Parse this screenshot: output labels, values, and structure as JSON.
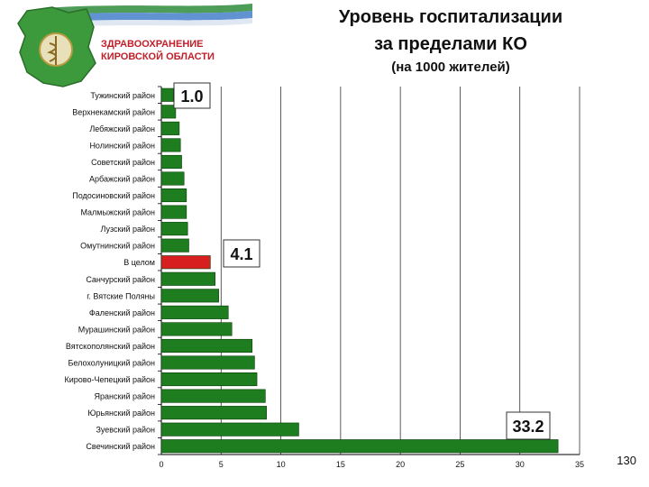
{
  "logo": {
    "line1": "ЗДРАВООХРАНЕНИЕ",
    "line2": "КИРОВСКОЙ ОБЛАСТИ",
    "colors": {
      "text": "#c0202a",
      "ribbon_green": "#2e8b3a",
      "ribbon_blue": "#3a78c8"
    }
  },
  "title_line1": "Уровень госпитализации",
  "title_line2": "за пределами КО",
  "subtitle": "(на 1000 жителей)",
  "page_number": "130",
  "chart_data": {
    "type": "bar",
    "orientation": "horizontal",
    "categories": [
      "Тужинский район",
      "Верхнекамский район",
      "Лебяжский район",
      "Нолинский район",
      "Советский район",
      "Арбажский район",
      "Подосиновский район",
      "Малмыжский район",
      "Лузский район",
      "Омутнинский район",
      "В целом",
      "Санчурский район",
      "г. Вятские Поляны",
      "Фаленский район",
      "Мурашинский район",
      "Вятскополянский район",
      "Белохолуницкий район",
      "Кирово-Чепецкий район",
      "Яранский район",
      "Юрьянский район",
      "Зуевский район",
      "Свечинский район"
    ],
    "values": [
      1.0,
      1.2,
      1.5,
      1.6,
      1.7,
      1.9,
      2.1,
      2.1,
      2.2,
      2.3,
      4.1,
      4.5,
      4.8,
      5.6,
      5.9,
      7.6,
      7.8,
      8.0,
      8.7,
      8.8,
      11.5,
      33.2
    ],
    "highlight_index": 10,
    "annotations": [
      {
        "text": "1.0",
        "index": 0
      },
      {
        "text": "4.1",
        "index": 10
      },
      {
        "text": "33.2",
        "index": 21
      }
    ],
    "xlim": [
      0,
      35
    ],
    "xticks": [
      0,
      5,
      10,
      15,
      20,
      25,
      30,
      35
    ],
    "grid": true,
    "colors": {
      "bar": "#1e7d1e",
      "highlight": "#d81f1f"
    }
  }
}
